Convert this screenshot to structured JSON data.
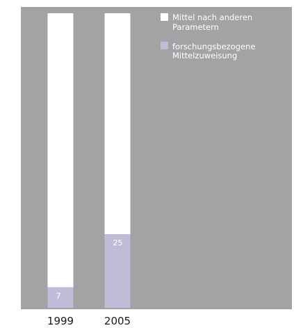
{
  "chart_data": {
    "type": "bar",
    "stacked": true,
    "percent_stacked": true,
    "categories": [
      "1999",
      "2005"
    ],
    "series": [
      {
        "name": "Mittel nach anderen Parametern",
        "values": [
          93,
          75
        ],
        "color": "#ffffff"
      },
      {
        "name": "forschungsbezogene Mittelzuweisung",
        "values": [
          7,
          25
        ],
        "color": "#c0bcd8"
      }
    ],
    "data_labels": [
      "7",
      "25"
    ],
    "ylim": [
      0,
      100
    ],
    "grid": false,
    "legend_position": "top-right",
    "background_color": "#a3a3a6",
    "legend": [
      {
        "lines": [
          "Mittel nach anderen",
          "Parametern"
        ],
        "color": "#ffffff"
      },
      {
        "lines": [
          "forschungsbezogene",
          "Mittelzuweisung"
        ],
        "color": "#c0bcd8"
      }
    ]
  }
}
